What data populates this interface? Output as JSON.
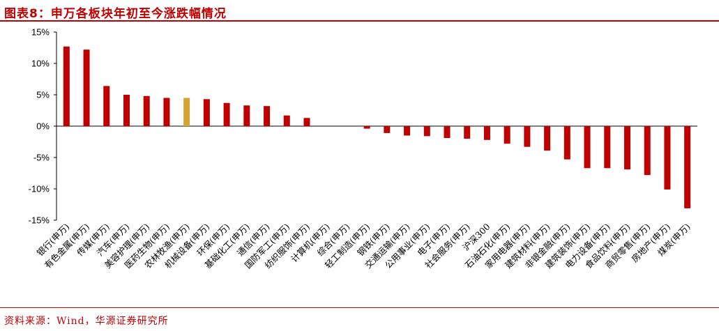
{
  "header": {
    "title": "图表8：申万各板块年初至今涨跌幅情况"
  },
  "footer": {
    "source": "资料来源：Wind，华源证券研究所"
  },
  "colors": {
    "accent": "#c00000",
    "bar": "#c00000",
    "highlight_bar": "#d4a531"
  },
  "chart_data": {
    "type": "bar",
    "title": "",
    "xlabel": "",
    "ylabel": "",
    "ylim": [
      -15,
      15
    ],
    "yticks": [
      15,
      10,
      5,
      0,
      -5,
      -10,
      -15
    ],
    "ytick_labels": [
      "15%",
      "10%",
      "5%",
      "0%",
      "-5%",
      "-10%",
      "-15%"
    ],
    "grid": false,
    "legend": "none",
    "highlight_category": "农林牧渔(申万)",
    "categories": [
      "银行(申万)",
      "有色金属(申万)",
      "传媒(申万)",
      "汽车(申万)",
      "美容护理(申万)",
      "医药生物(申万)",
      "农林牧渔(申万)",
      "机械设备(申万)",
      "环保(申万)",
      "基础化工(申万)",
      "通信(申万)",
      "国防军工(申万)",
      "纺织服饰(申万)",
      "计算机(申万)",
      "综合(申万)",
      "轻工制造(申万)",
      "钢铁(申万)",
      "交通运输(申万)",
      "公用事业(申万)",
      "电子(申万)",
      "社会服务(申万)",
      "沪深300",
      "石油石化(申万)",
      "家用电器(申万)",
      "建筑材料(申万)",
      "非银金融(申万)",
      "建筑装饰(申万)",
      "电力设备(申万)",
      "食品饮料(申万)",
      "商贸零售(申万)",
      "房地产(申万)",
      "煤炭(申万)"
    ],
    "values": [
      12.7,
      12.2,
      6.4,
      5.0,
      4.8,
      4.5,
      4.5,
      4.3,
      3.7,
      3.3,
      3.2,
      1.7,
      1.3,
      0.0,
      0.0,
      -0.4,
      -1.1,
      -1.5,
      -1.6,
      -1.9,
      -2.0,
      -2.2,
      -2.8,
      -3.3,
      -3.9,
      -5.3,
      -6.7,
      -6.7,
      -6.9,
      -7.8,
      -10.1,
      -13.1
    ]
  }
}
